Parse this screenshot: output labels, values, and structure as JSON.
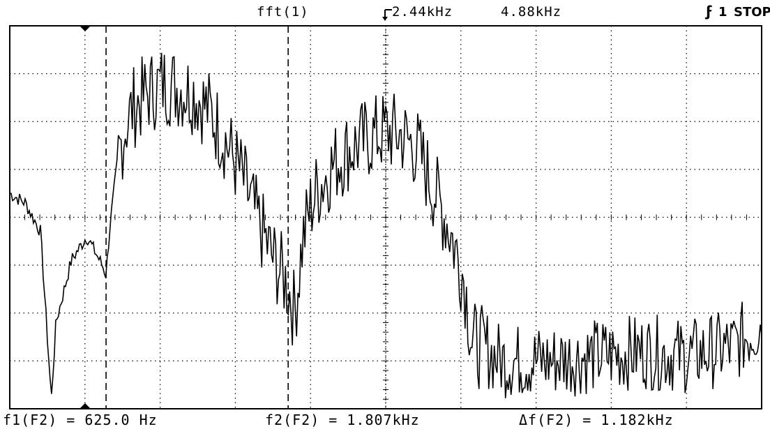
{
  "header": {
    "source": "fft(1)",
    "center_freq": "2.44kHz",
    "span_freq": "4.88kHz",
    "trigger_source": "1",
    "run_state": "STOP"
  },
  "measurements": {
    "f1": "f1(F2) = 625.0 Hz",
    "f2": "f2(F2) = 1.807kHz",
    "delta_f": "Δf(F2) = 1.182kHz"
  },
  "display": {
    "trace_color": "#000000",
    "background": "#ffffff",
    "grid": true
  },
  "chart_data": {
    "type": "line",
    "title": "",
    "xlabel": "",
    "ylabel": "",
    "xlim": [
      0,
      4.88
    ],
    "x_unit": "kHz",
    "center": 2.44,
    "markers": {
      "f1": 0.625,
      "f2": 1.807
    },
    "series": [
      {
        "x": [
          0.0,
          0.1,
          0.2,
          0.27,
          0.3,
          0.4,
          0.5,
          0.55,
          0.6,
          0.625,
          0.65,
          0.7,
          0.75,
          0.8,
          0.9,
          1.0,
          1.1,
          1.2,
          1.3,
          1.4,
          1.5,
          1.6,
          1.7,
          1.8,
          1.85,
          1.9,
          1.95,
          2.0,
          2.1,
          2.2,
          2.3,
          2.44,
          2.55,
          2.65,
          2.75,
          2.85,
          2.95,
          3.0,
          3.2,
          3.5,
          3.8,
          4.1,
          4.4,
          4.7,
          4.88
        ],
        "values": [
          4.5,
          4.3,
          3.7,
          0.2,
          1.8,
          3.1,
          3.6,
          3.3,
          3.0,
          2.8,
          3.8,
          5.2,
          5.9,
          6.3,
          6.6,
          6.8,
          6.7,
          6.6,
          6.2,
          5.6,
          4.9,
          4.0,
          3.2,
          2.6,
          2.0,
          3.5,
          4.2,
          4.6,
          5.1,
          5.4,
          5.6,
          5.8,
          5.7,
          5.4,
          4.6,
          3.8,
          2.7,
          1.4,
          1.0,
          1.0,
          1.1,
          1.2,
          1.1,
          1.3,
          1.8
        ]
      }
    ]
  }
}
